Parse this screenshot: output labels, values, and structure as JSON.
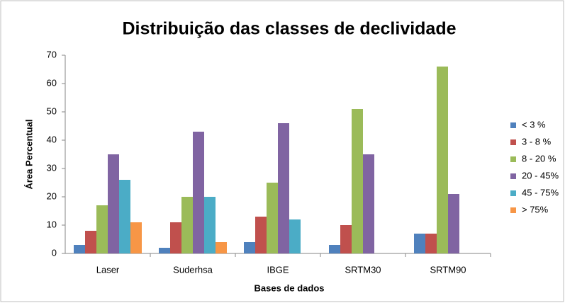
{
  "chart_data": {
    "type": "bar",
    "title": "Distribuição das classes de declividade",
    "x_label": "Bases de dados",
    "y_label": "Área Percentual",
    "categories": [
      "Laser",
      "Suderhsa",
      "IBGE",
      "SRTM30",
      "SRTM90"
    ],
    "series": [
      {
        "name": "< 3 %",
        "color": "#4f81bd",
        "values": [
          3,
          2,
          4,
          3,
          7
        ]
      },
      {
        "name": "3 - 8 %",
        "color": "#c0504d",
        "values": [
          8,
          11,
          13,
          10,
          7
        ]
      },
      {
        "name": "8 - 20 %",
        "color": "#9bbb59",
        "values": [
          17,
          20,
          25,
          51,
          66
        ]
      },
      {
        "name": "20 - 45%",
        "color": "#8064a2",
        "values": [
          35,
          43,
          46,
          35,
          21
        ]
      },
      {
        "name": "45 - 75%",
        "color": "#4bacc6",
        "values": [
          26,
          20,
          12,
          0,
          0
        ]
      },
      {
        "name": "> 75%",
        "color": "#f79646",
        "values": [
          11,
          4,
          0,
          0,
          0
        ]
      }
    ],
    "ylim": [
      0,
      70
    ],
    "yticks": [
      0,
      10,
      20,
      30,
      40,
      50,
      60,
      70
    ],
    "grid": false,
    "legend": "right"
  }
}
